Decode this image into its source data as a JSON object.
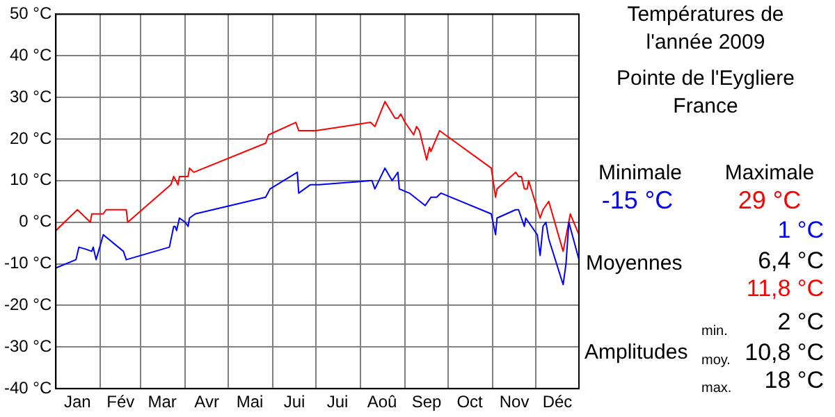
{
  "chart_data": {
    "type": "line",
    "title": "Températures de l'année 2009",
    "subtitle": "Pointe de l'Eygliere France",
    "xlim": [
      "2009-01-01",
      "2009-12-31"
    ],
    "xticks": [
      {
        "value": "2009-01-01",
        "label": null
      },
      {
        "value": "2009-01-16",
        "label": "Jan"
      },
      {
        "value": "2009-02-01",
        "label": null
      },
      {
        "value": "2009-02-15",
        "label": "Fév"
      },
      {
        "value": "2009-03-01",
        "label": null
      },
      {
        "value": "2009-03-16",
        "label": "Mar"
      },
      {
        "value": "2009-04-01",
        "label": null
      },
      {
        "value": "2009-04-16",
        "label": "Avr"
      },
      {
        "value": "2009-05-01",
        "label": null
      },
      {
        "value": "2009-05-16",
        "label": "Mai"
      },
      {
        "value": "2009-06-01",
        "label": null
      },
      {
        "value": "2009-06-16",
        "label": "Jui"
      },
      {
        "value": "2009-07-01",
        "label": null
      },
      {
        "value": "2009-07-16",
        "label": "Jui"
      },
      {
        "value": "2009-08-01",
        "label": null
      },
      {
        "value": "2009-08-16",
        "label": "Aoû"
      },
      {
        "value": "2009-09-01",
        "label": null
      },
      {
        "value": "2009-09-16",
        "label": "Sep"
      },
      {
        "value": "2009-10-01",
        "label": null
      },
      {
        "value": "2009-10-16",
        "label": "Oct"
      },
      {
        "value": "2009-11-01",
        "label": null
      },
      {
        "value": "2009-11-16",
        "label": "Nov"
      },
      {
        "value": "2009-12-01",
        "label": null
      },
      {
        "value": "2009-12-16",
        "label": "Déc"
      },
      {
        "value": "2009-12-31",
        "label": null
      }
    ],
    "ylim": [
      -40,
      50
    ],
    "yticks": [
      {
        "value": -40,
        "label": "-40 °C"
      },
      {
        "value": -30,
        "label": "-30 °C"
      },
      {
        "value": -20,
        "label": "-20 °C"
      },
      {
        "value": -10,
        "label": "-10 °C"
      },
      {
        "value": 0,
        "label": "0 °C"
      },
      {
        "value": 10,
        "label": "10 °C"
      },
      {
        "value": 20,
        "label": "20 °C"
      },
      {
        "value": 30,
        "label": "30 °C"
      },
      {
        "value": 40,
        "label": "40 °C"
      },
      {
        "value": 50,
        "label": "50 °C"
      }
    ],
    "grid": true,
    "legend": false,
    "marker": "none",
    "line_style": "solid",
    "series": [
      {
        "color": "#0000ff",
        "x": [
          "2009-01-01",
          "2009-01-15",
          "2009-01-17",
          "2009-01-22",
          "2009-01-26",
          "2009-01-27",
          "2009-01-29",
          "2009-02-03",
          "2009-02-17",
          "2009-02-19",
          "2009-03-21",
          "2009-03-24",
          "2009-03-25",
          "2009-03-26",
          "2009-03-28",
          "2009-04-01",
          "2009-04-03",
          "2009-04-04",
          "2009-04-08",
          "2009-05-27",
          "2009-05-30",
          "2009-06-18",
          "2009-06-19",
          "2009-06-27",
          "2009-07-03",
          "2009-08-09",
          "2009-08-11",
          "2009-08-18",
          "2009-08-23",
          "2009-08-27",
          "2009-08-28",
          "2009-09-04",
          "2009-09-15",
          "2009-09-19",
          "2009-09-23",
          "2009-09-26",
          "2009-10-31",
          "2009-11-03",
          "2009-11-04",
          "2009-11-17",
          "2009-11-19",
          "2009-11-23",
          "2009-11-24",
          "2009-12-02",
          "2009-12-04",
          "2009-12-06",
          "2009-12-08",
          "2009-12-10",
          "2009-12-20",
          "2009-12-22",
          "2009-12-24",
          "2009-12-31"
        ],
        "values": [
          -11,
          -9,
          -6,
          -6.5,
          -7,
          -6,
          -9,
          -3,
          -7,
          -9,
          -6,
          -1,
          -1,
          -2,
          1,
          0,
          -1,
          1,
          2,
          6,
          8,
          12,
          7,
          9,
          9,
          10,
          8,
          13,
          10,
          12,
          8,
          7,
          4,
          6,
          6,
          7,
          2,
          -3,
          1,
          3,
          3,
          -1,
          1,
          -3,
          -8,
          -1,
          0,
          -4,
          -15,
          -10,
          0,
          -9
        ]
      },
      {
        "color": "#ff0000",
        "x": [
          "2009-01-01",
          "2009-01-16",
          "2009-01-25",
          "2009-01-26",
          "2009-02-03",
          "2009-02-05",
          "2009-02-19",
          "2009-02-20",
          "2009-03-02",
          "2009-03-22",
          "2009-03-24",
          "2009-03-27",
          "2009-03-28",
          "2009-04-03",
          "2009-04-04",
          "2009-04-07",
          "2009-05-27",
          "2009-05-29",
          "2009-06-17",
          "2009-06-19",
          "2009-07-01",
          "2009-08-08",
          "2009-08-11",
          "2009-08-18",
          "2009-08-25",
          "2009-08-27",
          "2009-08-29",
          "2009-09-01",
          "2009-09-07",
          "2009-09-09",
          "2009-09-11",
          "2009-09-16",
          "2009-09-18",
          "2009-09-19",
          "2009-09-25",
          "2009-10-31",
          "2009-11-03",
          "2009-11-04",
          "2009-11-17",
          "2009-11-19",
          "2009-11-21",
          "2009-11-23",
          "2009-11-25",
          "2009-11-26",
          "2009-12-04",
          "2009-12-06",
          "2009-12-10",
          "2009-12-20",
          "2009-12-25",
          "2009-12-31"
        ],
        "values": [
          -2,
          3,
          0,
          2,
          2,
          3,
          3,
          0,
          3,
          9,
          11,
          9,
          11,
          11,
          13,
          12,
          19,
          21,
          24,
          22,
          22,
          24,
          23,
          29,
          25,
          25,
          26,
          24,
          21,
          23,
          22,
          15,
          18,
          17,
          22,
          13,
          6,
          8,
          12,
          11,
          11,
          8,
          8,
          10,
          1,
          3,
          5,
          -7,
          2,
          -3
        ]
      }
    ],
    "annotations": [
      "Minimale",
      "Maximale",
      "-15 °C",
      "29 °C",
      "Moyennes",
      "1 °C",
      "6,4 °C",
      "11,8 °C",
      "Amplitudes",
      "min.",
      "2 °C",
      "moy.",
      "10,8 °C",
      "max.",
      "18 °C"
    ]
  }
}
